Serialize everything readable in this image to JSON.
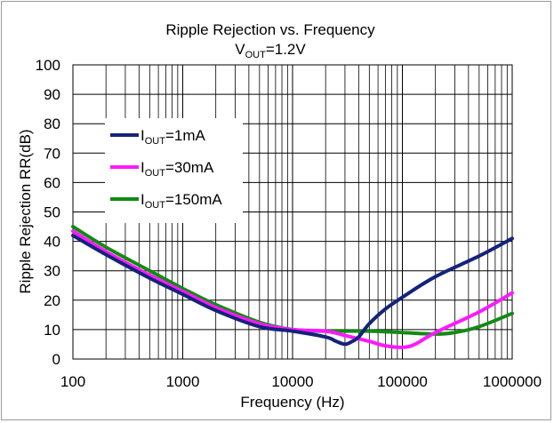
{
  "chart_data": {
    "type": "line",
    "title": "Ripple Rejection vs. Frequency",
    "subtitle": {
      "prefix": "V",
      "sub": "OUT",
      "suffix": "=1.2V"
    },
    "xlabel": "Frequency (Hz)",
    "ylabel": "Ripple Rejection RR(dB)",
    "x_scale": "log",
    "xlim": [
      100,
      1000000
    ],
    "ylim": [
      0,
      100
    ],
    "x_ticks": [
      "100",
      "1000",
      "10000",
      "100000",
      "1000000"
    ],
    "y_ticks": [
      "0",
      "10",
      "20",
      "30",
      "40",
      "50",
      "60",
      "70",
      "80",
      "90",
      "100"
    ],
    "grid": true,
    "legend_position": "top-left",
    "series": [
      {
        "name": "IOUT=1mA",
        "label_prefix": "I",
        "label_sub": "OUT",
        "label_suffix": "=1mA",
        "color": "#14237a",
        "x": [
          100,
          200,
          500,
          1000,
          2000,
          5000,
          10000,
          20000,
          25000,
          30000,
          35000,
          40000,
          50000,
          70000,
          100000,
          200000,
          500000,
          1000000
        ],
        "y": [
          42,
          35.5,
          27.5,
          22,
          16.5,
          11,
          9.5,
          7.5,
          6,
          5,
          6,
          7.5,
          12,
          17,
          21,
          28,
          35,
          41
        ]
      },
      {
        "name": "IOUT=30mA",
        "label_prefix": "I",
        "label_sub": "OUT",
        "label_suffix": "=30mA",
        "color": "#ff19ff",
        "x": [
          100,
          200,
          500,
          1000,
          2000,
          5000,
          10000,
          20000,
          30000,
          50000,
          70000,
          100000,
          130000,
          200000,
          500000,
          1000000
        ],
        "y": [
          43.5,
          36.5,
          28.5,
          23,
          17.5,
          12,
          10,
          9.5,
          8,
          6,
          4.5,
          4,
          5,
          9,
          16,
          22.5
        ]
      },
      {
        "name": "IOUT=150mA",
        "label_prefix": "I",
        "label_sub": "OUT",
        "label_suffix": "=150mA",
        "color": "#138a13",
        "x": [
          100,
          200,
          500,
          1000,
          2000,
          5000,
          10000,
          20000,
          50000,
          100000,
          200000,
          300000,
          500000,
          1000000
        ],
        "y": [
          45,
          38,
          30,
          24,
          18.5,
          12.5,
          10,
          9.5,
          9.5,
          9,
          8.5,
          9,
          11,
          15.5
        ]
      }
    ]
  }
}
